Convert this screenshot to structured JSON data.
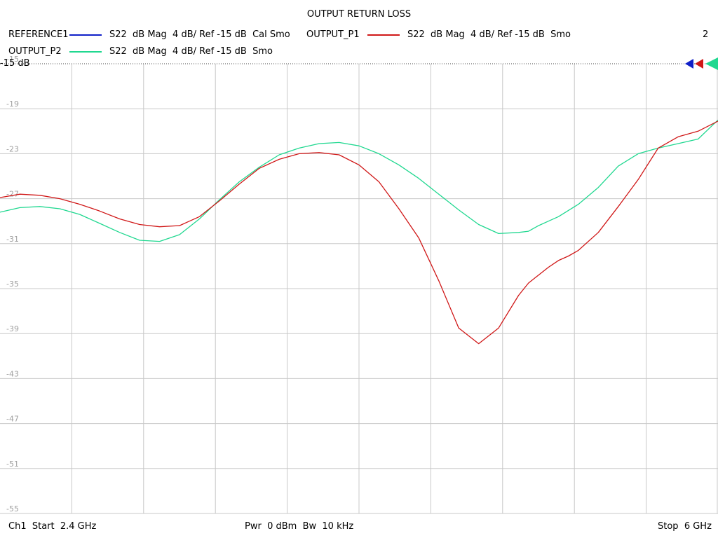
{
  "title": "OUTPUT RETURN LOSS",
  "legend": [
    {
      "name": "REFERENCE1",
      "desc": "S22  dB Mag  4 dB/ Ref -15 dB  Cal Smo",
      "color": "#1020c8"
    },
    {
      "name": "OUTPUT_P1",
      "desc": "S22  dB Mag  4 dB/ Ref -15 dB  Smo",
      "color": "#d01818"
    },
    {
      "name": "OUTPUT_P2",
      "desc": "S22  dB Mag  4 dB/ Ref -15 dB  Smo",
      "color": "#20d890"
    }
  ],
  "page_number": "2",
  "ref_label": "-15 dB",
  "footer": {
    "start": "Ch1  Start  2.4 GHz",
    "power": "Pwr  0 dBm  Bw  10 kHz",
    "stop": "Stop  6 GHz"
  },
  "chart_data": {
    "type": "line",
    "title": "OUTPUT RETURN LOSS",
    "xlabel": "",
    "ylabel": "",
    "xlim": [
      2.4,
      6.0
    ],
    "ylim": [
      -55,
      -15
    ],
    "y_ticks": [
      "-15",
      "-19",
      "-23",
      "-27",
      "-31",
      "-35",
      "-39",
      "-43",
      "-47",
      "-51",
      "-55"
    ],
    "x_divisions": 10,
    "grid": true,
    "series": [
      {
        "name": "OUTPUT_P1",
        "color": "#d01818",
        "x": [
          2.4,
          2.5,
          2.6,
          2.7,
          2.8,
          2.9,
          3.0,
          3.1,
          3.2,
          3.3,
          3.35,
          3.4,
          3.5,
          3.6,
          3.7,
          3.8,
          3.9,
          4.0,
          4.1,
          4.2,
          4.3,
          4.4,
          4.5,
          4.6,
          4.7,
          4.8,
          4.9,
          5.0,
          5.05,
          5.1,
          5.15,
          5.2,
          5.25,
          5.3,
          5.4,
          5.5,
          5.6,
          5.7,
          5.8,
          5.9,
          6.0
        ],
        "y": [
          -26.9,
          -26.6,
          -26.7,
          -27.0,
          -27.5,
          -28.1,
          -28.8,
          -29.3,
          -29.5,
          -29.4,
          -29.0,
          -28.6,
          -27.2,
          -25.7,
          -24.3,
          -23.5,
          -23.0,
          -22.9,
          -23.1,
          -24.0,
          -25.5,
          -27.9,
          -30.5,
          -34.3,
          -38.5,
          -39.9,
          -38.5,
          -35.6,
          -34.5,
          -33.8,
          -33.1,
          -32.5,
          -32.1,
          -31.6,
          -30.0,
          -27.7,
          -25.3,
          -22.5,
          -21.5,
          -21.0,
          -20.1
        ]
      },
      {
        "name": "OUTPUT_P2",
        "color": "#20d890",
        "x": [
          2.4,
          2.5,
          2.6,
          2.7,
          2.8,
          2.9,
          3.0,
          3.1,
          3.2,
          3.3,
          3.4,
          3.5,
          3.6,
          3.7,
          3.8,
          3.9,
          4.0,
          4.1,
          4.2,
          4.3,
          4.4,
          4.5,
          4.6,
          4.7,
          4.8,
          4.9,
          5.0,
          5.05,
          5.1,
          5.15,
          5.2,
          5.3,
          5.4,
          5.5,
          5.6,
          5.7,
          5.8,
          5.9,
          6.0
        ],
        "y": [
          -28.2,
          -27.8,
          -27.7,
          -27.9,
          -28.4,
          -29.2,
          -30.0,
          -30.7,
          -30.8,
          -30.2,
          -28.8,
          -27.1,
          -25.5,
          -24.2,
          -23.1,
          -22.5,
          -22.1,
          -22.0,
          -22.3,
          -23.0,
          -24.0,
          -25.2,
          -26.6,
          -28.0,
          -29.3,
          -30.1,
          -30.0,
          -29.9,
          -29.4,
          -29.0,
          -28.6,
          -27.5,
          -26.0,
          -24.1,
          -23.0,
          -22.5,
          -22.1,
          -21.7,
          -20.0
        ]
      }
    ]
  }
}
